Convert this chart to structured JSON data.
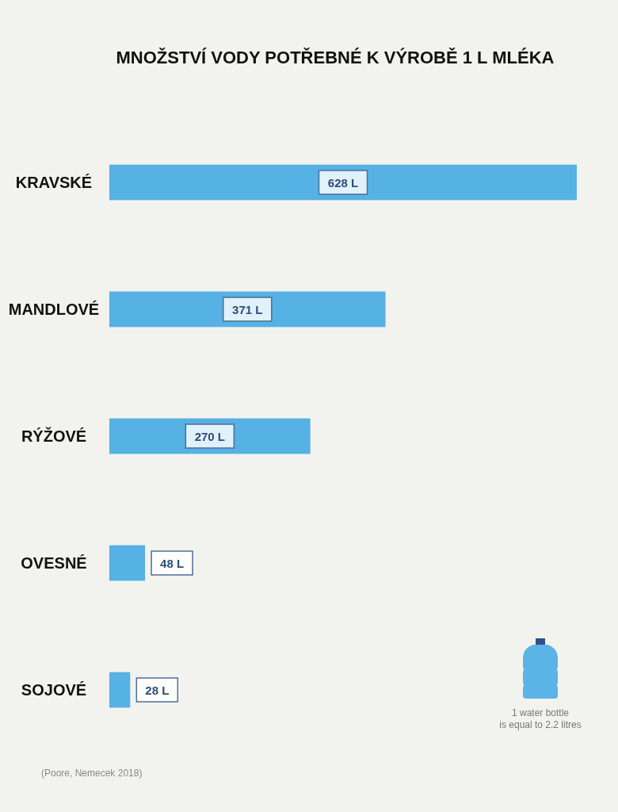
{
  "chart_data": {
    "type": "bar",
    "orientation": "horizontal",
    "title": "MNOŽSTVÍ VODY POTŘEBNÉ K VÝROBĚ 1 L MLÉKA",
    "categories": [
      "KRAVSKÉ",
      "MANDLOVÉ",
      "RÝŽOVÉ",
      "OVESNÉ",
      "SOJOVÉ"
    ],
    "values": [
      628,
      371,
      270,
      48,
      28
    ],
    "value_labels": [
      "628 L",
      "371 L",
      "270 L",
      "48 L",
      "28 L"
    ],
    "color": "#56b1e4",
    "annotations": [
      "1 water bottle\nis equal to 2.2 litres",
      "(Poore, Nemecek 2018)"
    ]
  }
}
